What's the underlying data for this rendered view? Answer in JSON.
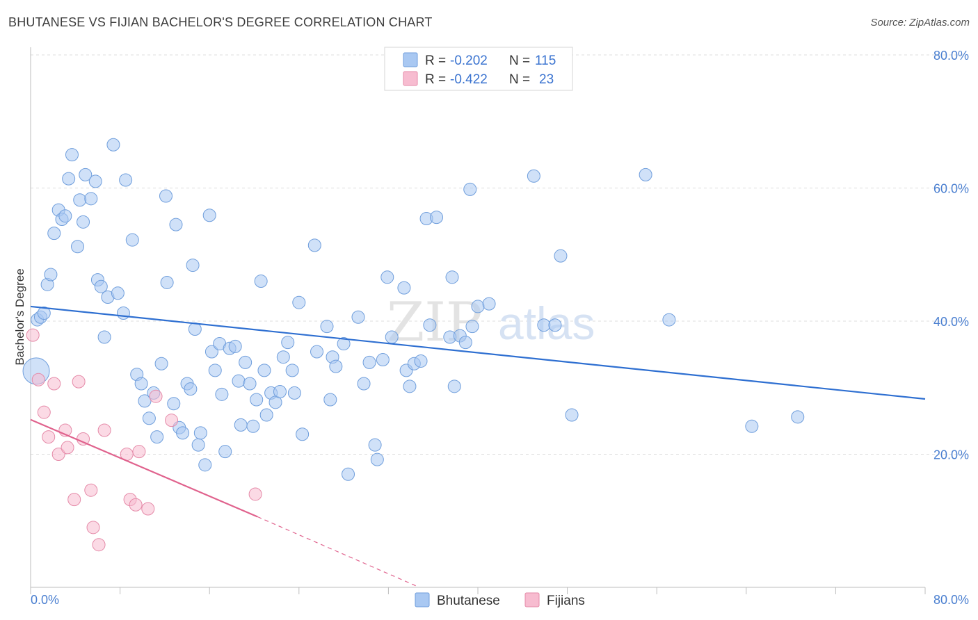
{
  "header": {
    "title": "BHUTANESE VS FIJIAN BACHELOR'S DEGREE CORRELATION CHART",
    "source": "Source: ZipAtlas.com"
  },
  "watermark": {
    "zip": "ZIP",
    "atlas": "atlas"
  },
  "legend_top": {
    "rows": [
      {
        "r_label": "R =",
        "r_value": "-0.202",
        "n_label": "N =",
        "n_value": "115",
        "color": "#a9c8f2",
        "stroke": "#6f9edc"
      },
      {
        "r_label": "R =",
        "r_value": "-0.422",
        "n_label": "N =",
        "n_value": "23",
        "color": "#f7bcd0",
        "stroke": "#e58aa8"
      }
    ]
  },
  "legend_bottom": {
    "items": [
      {
        "label": "Bhutanese",
        "color": "#a9c8f2",
        "stroke": "#6f9edc"
      },
      {
        "label": "Fijians",
        "color": "#f7bcd0",
        "stroke": "#e58aa8"
      }
    ]
  },
  "chart_data": {
    "type": "scatter",
    "title": "BHUTANESE VS FIJIAN BACHELOR'S DEGREE CORRELATION CHART",
    "xlabel": "",
    "ylabel": "Bachelor's Degree",
    "xlim": [
      0,
      80
    ],
    "ylim": [
      0,
      80
    ],
    "x_tick_labels": [
      "0.0%",
      "80.0%"
    ],
    "y_tick_labels": [
      "20.0%",
      "40.0%",
      "60.0%",
      "80.0%"
    ],
    "y_ticks": [
      20,
      40,
      60,
      80
    ],
    "grid": true,
    "legend_placement": "top-center",
    "series": [
      {
        "name": "Bhutanese",
        "color": "#a9c8f2",
        "stroke": "#6f9edc",
        "line_color": "#2e6fd1",
        "trend": {
          "x0": 0,
          "y0": 42.2,
          "x1": 80,
          "y1": 28.3
        },
        "points": [
          [
            0.5,
            32.5
          ],
          [
            0.6,
            40.2
          ],
          [
            0.9,
            40.6
          ],
          [
            1.2,
            41.2
          ],
          [
            1.5,
            45.5
          ],
          [
            1.8,
            47.0
          ],
          [
            2.1,
            53.2
          ],
          [
            2.5,
            56.7
          ],
          [
            2.8,
            55.3
          ],
          [
            3.1,
            55.8
          ],
          [
            3.4,
            61.4
          ],
          [
            3.7,
            65.0
          ],
          [
            4.2,
            51.2
          ],
          [
            4.4,
            58.2
          ],
          [
            4.7,
            54.9
          ],
          [
            4.9,
            62.0
          ],
          [
            5.4,
            58.4
          ],
          [
            5.8,
            61.0
          ],
          [
            6.0,
            46.2
          ],
          [
            6.3,
            45.2
          ],
          [
            6.6,
            37.6
          ],
          [
            6.9,
            43.6
          ],
          [
            7.4,
            66.5
          ],
          [
            7.8,
            44.2
          ],
          [
            8.3,
            41.2
          ],
          [
            8.5,
            61.2
          ],
          [
            9.1,
            52.2
          ],
          [
            9.5,
            32.0
          ],
          [
            9.9,
            30.6
          ],
          [
            10.2,
            28.0
          ],
          [
            10.6,
            25.4
          ],
          [
            11.0,
            29.2
          ],
          [
            11.3,
            22.6
          ],
          [
            11.7,
            33.6
          ],
          [
            12.1,
            58.8
          ],
          [
            12.2,
            45.8
          ],
          [
            12.8,
            27.6
          ],
          [
            13.0,
            54.5
          ],
          [
            13.3,
            24.0
          ],
          [
            13.6,
            23.2
          ],
          [
            14.0,
            30.6
          ],
          [
            14.3,
            29.8
          ],
          [
            14.5,
            48.4
          ],
          [
            14.7,
            38.8
          ],
          [
            15.0,
            21.4
          ],
          [
            15.2,
            23.2
          ],
          [
            15.6,
            18.4
          ],
          [
            16.0,
            55.9
          ],
          [
            16.2,
            35.4
          ],
          [
            16.5,
            32.6
          ],
          [
            16.9,
            36.6
          ],
          [
            17.1,
            29.0
          ],
          [
            17.4,
            20.4
          ],
          [
            17.8,
            35.9
          ],
          [
            18.3,
            36.2
          ],
          [
            18.6,
            31.0
          ],
          [
            18.8,
            24.4
          ],
          [
            19.2,
            33.8
          ],
          [
            19.6,
            30.6
          ],
          [
            19.9,
            24.2
          ],
          [
            20.2,
            28.2
          ],
          [
            20.6,
            46.0
          ],
          [
            20.9,
            32.6
          ],
          [
            21.1,
            25.9
          ],
          [
            21.5,
            29.2
          ],
          [
            21.9,
            27.8
          ],
          [
            22.3,
            29.4
          ],
          [
            22.6,
            34.6
          ],
          [
            23.0,
            36.8
          ],
          [
            23.4,
            32.6
          ],
          [
            23.6,
            29.2
          ],
          [
            24.0,
            42.8
          ],
          [
            24.3,
            23.0
          ],
          [
            25.4,
            51.4
          ],
          [
            25.6,
            35.4
          ],
          [
            26.5,
            39.2
          ],
          [
            26.8,
            28.2
          ],
          [
            27.0,
            34.6
          ],
          [
            27.3,
            33.2
          ],
          [
            28.0,
            36.6
          ],
          [
            28.4,
            17.0
          ],
          [
            29.3,
            40.6
          ],
          [
            29.8,
            30.6
          ],
          [
            30.3,
            33.8
          ],
          [
            30.8,
            21.4
          ],
          [
            31.0,
            19.2
          ],
          [
            31.5,
            34.2
          ],
          [
            31.9,
            46.6
          ],
          [
            32.3,
            37.6
          ],
          [
            33.4,
            45.0
          ],
          [
            33.6,
            32.6
          ],
          [
            33.9,
            30.2
          ],
          [
            34.3,
            33.6
          ],
          [
            34.9,
            34.0
          ],
          [
            35.4,
            55.4
          ],
          [
            35.7,
            39.4
          ],
          [
            36.3,
            55.6
          ],
          [
            37.5,
            37.6
          ],
          [
            37.7,
            46.6
          ],
          [
            37.9,
            30.2
          ],
          [
            38.4,
            37.8
          ],
          [
            38.9,
            36.8
          ],
          [
            39.3,
            59.8
          ],
          [
            39.5,
            39.2
          ],
          [
            40.0,
            42.2
          ],
          [
            41.0,
            42.6
          ],
          [
            45.0,
            61.8
          ],
          [
            45.9,
            39.4
          ],
          [
            46.9,
            39.4
          ],
          [
            47.4,
            49.8
          ],
          [
            48.4,
            25.9
          ],
          [
            55.0,
            62.0
          ],
          [
            64.5,
            24.2
          ],
          [
            68.6,
            25.6
          ],
          [
            57.1,
            40.2
          ]
        ]
      },
      {
        "name": "Fijians",
        "color": "#f7bcd0",
        "stroke": "#e58aa8",
        "line_color": "#e0628d",
        "trend": {
          "x0": 0,
          "y0": 25.2,
          "x1": 20.3,
          "y1": 10.6
        },
        "trend_dashed": {
          "x0": 20.3,
          "y0": 10.6,
          "x1": 34.5,
          "y1": 0.2
        },
        "points": [
          [
            0.2,
            37.9
          ],
          [
            0.7,
            31.2
          ],
          [
            1.2,
            26.3
          ],
          [
            1.6,
            22.6
          ],
          [
            2.1,
            30.6
          ],
          [
            2.5,
            20.0
          ],
          [
            3.1,
            23.6
          ],
          [
            3.3,
            21.0
          ],
          [
            3.9,
            13.2
          ],
          [
            4.3,
            30.9
          ],
          [
            4.7,
            22.3
          ],
          [
            5.4,
            14.6
          ],
          [
            5.6,
            9.0
          ],
          [
            6.1,
            6.4
          ],
          [
            6.6,
            23.6
          ],
          [
            8.6,
            20.0
          ],
          [
            8.9,
            13.2
          ],
          [
            9.4,
            12.4
          ],
          [
            9.7,
            20.4
          ],
          [
            10.5,
            11.8
          ],
          [
            11.2,
            28.7
          ],
          [
            12.6,
            25.1
          ],
          [
            20.1,
            14.0
          ]
        ]
      }
    ]
  }
}
